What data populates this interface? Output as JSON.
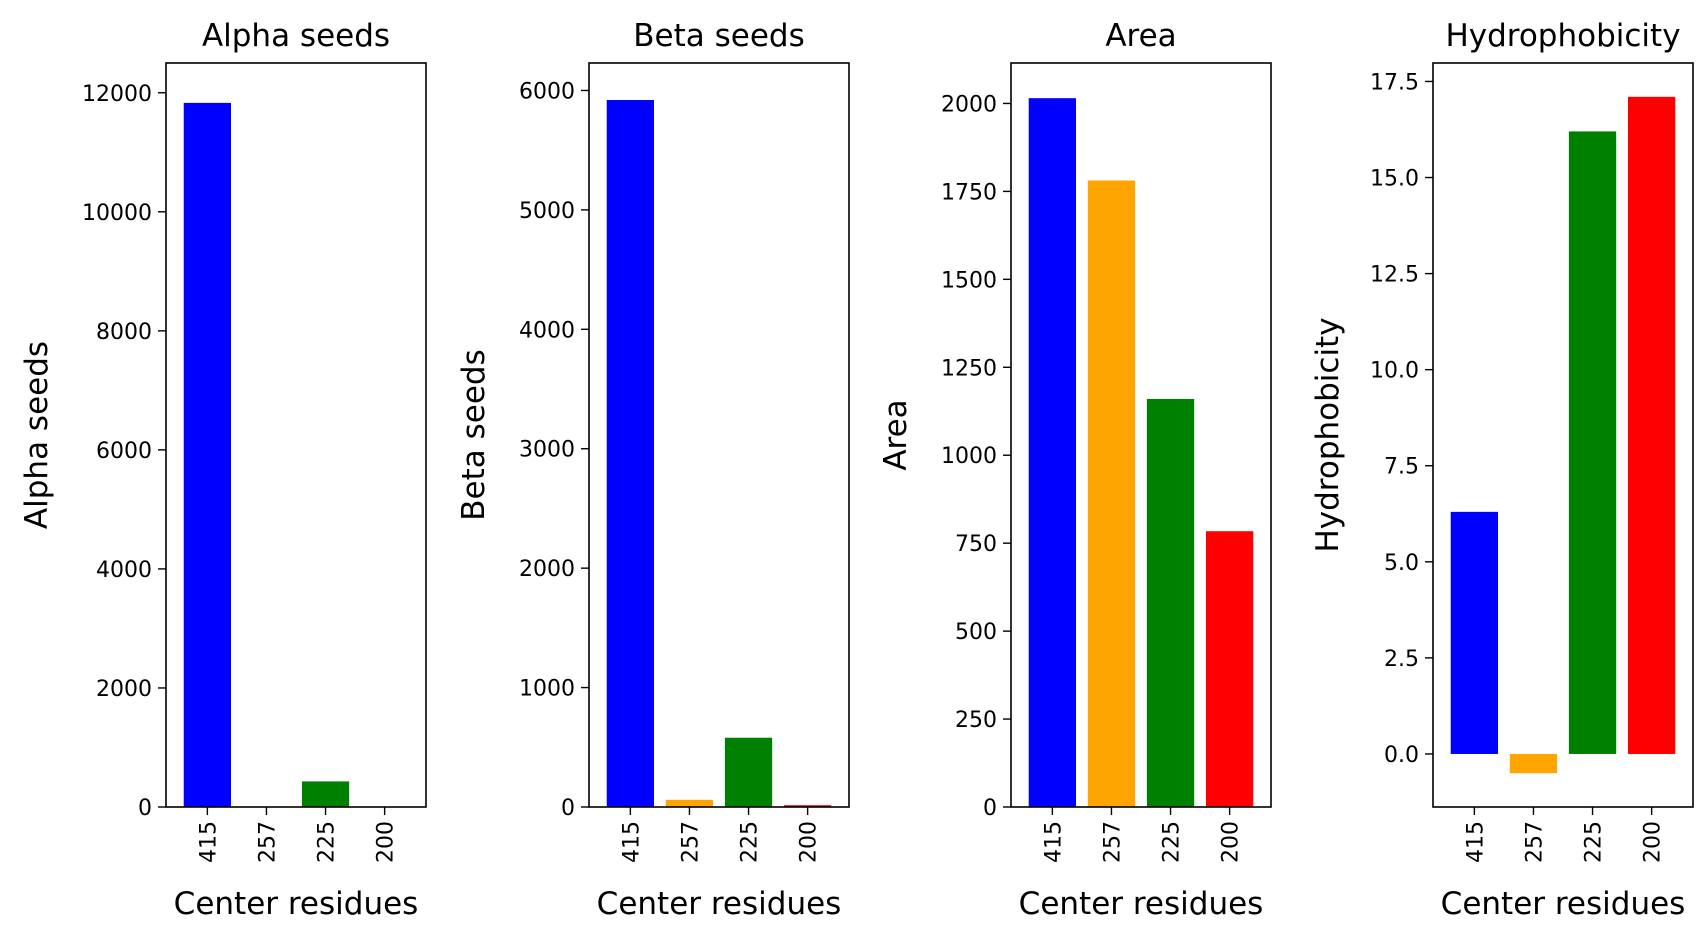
{
  "chart_data": [
    {
      "type": "bar",
      "title": "Alpha seeds",
      "xlabel": "Center residues",
      "ylabel": "Alpha seeds",
      "categories": [
        "415",
        "257",
        "225",
        "200"
      ],
      "values": [
        11830,
        0,
        430,
        0
      ],
      "colors": [
        "#0000ff",
        "#ffa500",
        "#008000",
        "#ff0000"
      ],
      "ylim": [
        0,
        12500
      ],
      "yticks": [
        0,
        2000,
        4000,
        6000,
        8000,
        10000,
        12000
      ],
      "ytick_labels": [
        "0",
        "2000",
        "4000",
        "6000",
        "8000",
        "10000",
        "12000"
      ],
      "grid": false
    },
    {
      "type": "bar",
      "title": "Beta seeds",
      "xlabel": "Center residues",
      "ylabel": "Beta seeds",
      "categories": [
        "415",
        "257",
        "225",
        "200"
      ],
      "values": [
        5920,
        60,
        580,
        15
      ],
      "colors": [
        "#0000ff",
        "#ffa500",
        "#008000",
        "#ff0000"
      ],
      "ylim": [
        0,
        6230
      ],
      "yticks": [
        0,
        1000,
        2000,
        3000,
        4000,
        5000,
        6000
      ],
      "ytick_labels": [
        "0",
        "1000",
        "2000",
        "3000",
        "4000",
        "5000",
        "6000"
      ],
      "grid": false
    },
    {
      "type": "bar",
      "title": "Area",
      "xlabel": "Center residues",
      "ylabel": "Area",
      "categories": [
        "415",
        "257",
        "225",
        "200"
      ],
      "values": [
        2015,
        1781,
        1160,
        784
      ],
      "colors": [
        "#0000ff",
        "#ffa500",
        "#008000",
        "#ff0000"
      ],
      "ylim": [
        0,
        2115
      ],
      "yticks": [
        0,
        250,
        500,
        750,
        1000,
        1250,
        1500,
        1750,
        2000
      ],
      "ytick_labels": [
        "0",
        "250",
        "500",
        "750",
        "1000",
        "1250",
        "1500",
        "1750",
        "2000"
      ],
      "grid": false
    },
    {
      "type": "bar",
      "title": "Hydrophobicity",
      "xlabel": "Center residues",
      "ylabel": "Hydrophobicity",
      "categories": [
        "415",
        "257",
        "225",
        "200"
      ],
      "values": [
        6.3,
        -0.5,
        16.2,
        17.1
      ],
      "colors": [
        "#0000ff",
        "#ffa500",
        "#008000",
        "#ff0000"
      ],
      "ylim": [
        -1.38,
        17.98
      ],
      "yticks": [
        0,
        2.5,
        5,
        7.5,
        10,
        12.5,
        15,
        17.5
      ],
      "ytick_labels": [
        "0.0",
        "2.5",
        "5.0",
        "7.5",
        "10.0",
        "12.5",
        "15.0",
        "17.5"
      ],
      "grid": false
    }
  ]
}
